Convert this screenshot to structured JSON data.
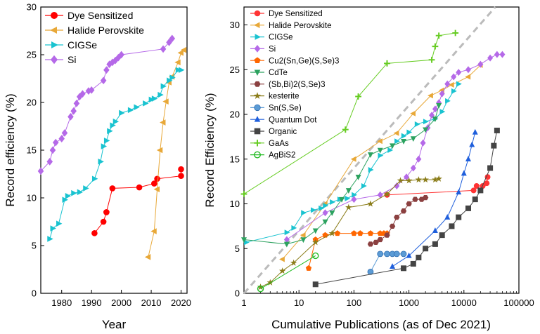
{
  "chart_data": [
    {
      "type": "line",
      "panel": "left",
      "xlabel": "Year",
      "ylabel": "Record efficiency (%)",
      "xlim": [
        1973,
        2022
      ],
      "ylim": [
        0,
        30
      ],
      "x_ticks": [
        1980,
        1990,
        2000,
        2010,
        2020
      ],
      "y_ticks": [
        0,
        5,
        10,
        15,
        20,
        25,
        30
      ],
      "legend_position": "top-left",
      "series": [
        {
          "name": "Dye Sensitized",
          "color": "#ff0000",
          "marker": "circle",
          "x": [
            1991,
            1994,
            1995,
            1995,
            1997,
            2006,
            2011,
            2012,
            2020,
            2020
          ],
          "y": [
            6.3,
            7.5,
            8.5,
            8.5,
            11.0,
            11.1,
            11.5,
            12.0,
            12.3,
            13.0
          ]
        },
        {
          "name": "Halide Perovskite",
          "color": "#e8a838",
          "marker": "triangle-left",
          "x": [
            2009,
            2011,
            2012,
            2013,
            2014,
            2015,
            2016,
            2017,
            2019,
            2020,
            2021
          ],
          "y": [
            3.8,
            6.5,
            10.9,
            15.0,
            17.9,
            20.1,
            22.1,
            22.7,
            24.2,
            25.2,
            25.5
          ]
        },
        {
          "name": "CIGSe",
          "color": "#19c3d0",
          "marker": "triangle-right",
          "x": [
            1976,
            1977,
            1979,
            1981,
            1982,
            1984,
            1986,
            1988,
            1991,
            1993,
            1994,
            1995,
            1996,
            1997,
            1998,
            2000,
            2003,
            2005,
            2008,
            2010,
            2011,
            2013,
            2014,
            2016,
            2017,
            2019,
            2020
          ],
          "y": [
            5.7,
            6.8,
            7.3,
            9.8,
            10.2,
            10.5,
            10.6,
            11.0,
            12.0,
            13.8,
            15.4,
            16.0,
            17.0,
            17.6,
            18.0,
            18.9,
            19.2,
            19.5,
            19.9,
            20.3,
            20.4,
            20.8,
            21.7,
            22.3,
            22.6,
            23.4,
            23.4
          ]
        },
        {
          "name": "Si",
          "color": "#b569e8",
          "marker": "diamond",
          "x": [
            1973,
            1976,
            1977,
            1978,
            1980,
            1981,
            1983,
            1984,
            1985,
            1986,
            1987,
            1989,
            1990,
            1994,
            1995,
            1996,
            1997,
            1998,
            1999,
            2000,
            2014,
            2016,
            2017
          ],
          "y": [
            12.8,
            13.8,
            15.0,
            15.8,
            16.2,
            16.8,
            18.5,
            19.1,
            19.9,
            20.6,
            20.9,
            21.2,
            21.3,
            22.3,
            23.4,
            24.0,
            24.2,
            24.4,
            24.7,
            25.0,
            25.6,
            26.3,
            26.7
          ]
        }
      ]
    },
    {
      "type": "line",
      "panel": "right",
      "xlabel": "Cumulative Publications (as of Dec 2021)",
      "ylabel": "Record Efficiency (%)",
      "xscale": "log",
      "xlim": [
        1,
        100000
      ],
      "ylim": [
        0,
        32
      ],
      "x_ticks": [
        1,
        10,
        100,
        1000,
        10000,
        100000
      ],
      "x_tick_labels": [
        "1",
        "10",
        "100",
        "1000",
        "10000",
        "100000"
      ],
      "y_ticks": [
        0,
        5,
        10,
        15,
        20,
        25,
        30
      ],
      "legend_position": "top-left",
      "trend_line": {
        "color": "#bbbbbb",
        "style": "dashed",
        "x": [
          1,
          100000
        ],
        "y": [
          0,
          35
        ]
      },
      "series": [
        {
          "name": "Dye Sensitized",
          "color": "#ff3333",
          "marker": "circle",
          "x": [
            400,
            15000,
            17000,
            22000,
            26000,
            27000
          ],
          "y": [
            11.0,
            11.5,
            12.0,
            12.0,
            12.3,
            13.0
          ]
        },
        {
          "name": "Halide Perovskite",
          "color": "#e8a838",
          "marker": "triangle-left",
          "x": [
            5,
            12,
            30,
            100,
            300,
            600,
            1200,
            2500,
            4000,
            6000,
            12000,
            20000
          ],
          "y": [
            3.8,
            6.5,
            10.0,
            15.0,
            17.0,
            17.9,
            20.1,
            22.1,
            22.7,
            23.3,
            24.2,
            25.5
          ]
        },
        {
          "name": "CIGSe",
          "color": "#19c3d0",
          "marker": "triangle-right",
          "x": [
            1.1,
            6,
            8,
            12,
            18,
            25,
            30,
            40,
            55,
            75,
            100,
            150,
            200,
            300,
            450,
            600,
            800,
            1000,
            1400,
            2000,
            3000,
            4000,
            5000,
            6500,
            8000
          ],
          "y": [
            5.7,
            6.8,
            7.3,
            9.0,
            9.3,
            9.5,
            9.8,
            10.2,
            10.5,
            10.6,
            11.0,
            12.0,
            13.8,
            15.4,
            16.0,
            17.0,
            17.6,
            18.0,
            18.9,
            19.2,
            19.5,
            20.3,
            21.5,
            22.6,
            23.4
          ]
        },
        {
          "name": "Si",
          "color": "#b569e8",
          "marker": "diamond",
          "x": [
            6,
            30,
            100,
            300,
            600,
            900,
            1200,
            1500,
            1800,
            2200,
            2600,
            3000,
            3500,
            4000,
            5000,
            6500,
            8000,
            12000,
            20000,
            30000,
            40000,
            50000
          ],
          "y": [
            6.0,
            9.0,
            10.5,
            11.0,
            12.0,
            13.0,
            14.0,
            15.0,
            16.8,
            18.5,
            19.9,
            20.6,
            21.3,
            22.3,
            23.4,
            24.2,
            24.7,
            25.0,
            25.6,
            26.3,
            26.7,
            26.7
          ]
        },
        {
          "name": "Cu2(Sn,Ge)(S,Se)3",
          "color": "#ff6600",
          "marker": "pentagon",
          "x": [
            15,
            20,
            30,
            50,
            100,
            130,
            200,
            300,
            350,
            400
          ],
          "y": [
            2.8,
            6.0,
            6.5,
            6.7,
            6.7,
            6.7,
            6.7,
            6.7,
            6.7,
            6.7
          ]
        },
        {
          "name": "CdTe",
          "color": "#2ca25f",
          "marker": "triangle-down",
          "x": [
            1,
            6,
            12,
            20,
            30,
            40,
            60,
            80,
            120,
            200,
            300,
            500,
            800,
            1200,
            2000,
            3000,
            3500
          ],
          "y": [
            6.0,
            5.5,
            6.0,
            7.0,
            8.0,
            9.0,
            10.5,
            11.5,
            13.0,
            15.5,
            16.0,
            16.5,
            17.0,
            17.3,
            18.3,
            19.5,
            21.0
          ]
        },
        {
          "name": "(Sb,Bi)2(S,Se)3",
          "color": "#8b4040",
          "marker": "hexagon",
          "x": [
            200,
            250,
            300,
            400,
            500,
            600,
            800,
            1000,
            1300,
            1700,
            2000
          ],
          "y": [
            5.5,
            5.7,
            6.0,
            6.5,
            7.5,
            8.5,
            9.2,
            10.0,
            10.5,
            10.5,
            10.7
          ]
        },
        {
          "name": "kesterite",
          "color": "#8b7d1a",
          "marker": "star",
          "x": [
            2,
            3,
            5,
            8,
            20,
            40,
            80,
            200,
            400,
            700,
            1000,
            1500,
            2000,
            3000,
            3500
          ],
          "y": [
            0.7,
            1.2,
            2.5,
            3.4,
            5.7,
            6.7,
            9.6,
            10.0,
            11.1,
            12.6,
            12.6,
            12.7,
            12.7,
            12.7,
            12.8
          ]
        },
        {
          "name": "Sn(S,Se)",
          "color": "#5b9bd5",
          "marker": "sphere",
          "x": [
            200,
            300,
            400,
            500,
            600,
            800
          ],
          "y": [
            2.4,
            4.4,
            4.4,
            4.4,
            4.4,
            4.4
          ]
        },
        {
          "name": "Quantum Dot",
          "color": "#1f5fdc",
          "marker": "triangle-up",
          "x": [
            500,
            1000,
            3000,
            5000,
            8000,
            10000,
            12000,
            14000,
            16000
          ],
          "y": [
            3.0,
            4.2,
            7.0,
            8.5,
            11.3,
            13.4,
            15.0,
            16.6,
            18.0
          ]
        },
        {
          "name": "Organic",
          "color": "#444444",
          "marker": "square",
          "x": [
            20,
            800,
            1200,
            1500,
            2000,
            3000,
            4000,
            6000,
            8000,
            12000,
            16000,
            20000,
            30000,
            35000,
            40000
          ],
          "y": [
            1.0,
            2.8,
            3.3,
            4.0,
            5.0,
            5.5,
            6.5,
            7.5,
            8.5,
            9.5,
            10.5,
            11.5,
            14.0,
            16.5,
            18.2
          ]
        },
        {
          "name": "GaAs",
          "color": "#66cc22",
          "marker": "plus",
          "x": [
            1,
            70,
            120,
            400,
            2600,
            3000,
            3500,
            7000
          ],
          "y": [
            11.1,
            18.3,
            22.0,
            25.7,
            26.1,
            27.6,
            28.8,
            29.1
          ]
        },
        {
          "name": "AgBiS2",
          "color": "#22bb22",
          "marker": "open-circle",
          "x": [
            2,
            20
          ],
          "y": [
            0.5,
            4.2
          ]
        }
      ]
    }
  ]
}
